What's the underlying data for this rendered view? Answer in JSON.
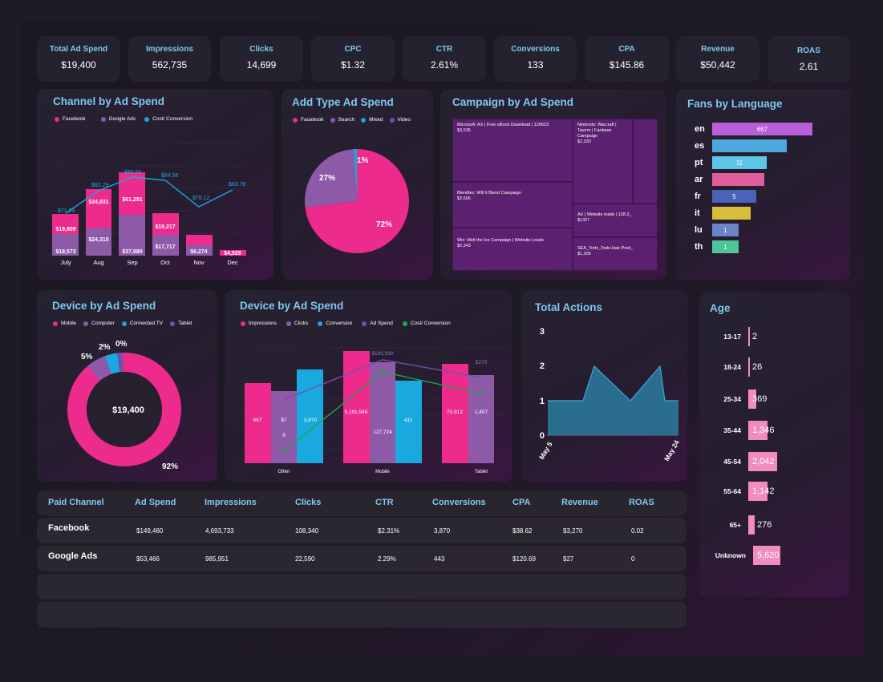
{
  "kpis": [
    {
      "label": "Total Ad Spend",
      "value": "$19,400"
    },
    {
      "label": "Impressions",
      "value": "562,735"
    },
    {
      "label": "Clicks",
      "value": "14,699"
    },
    {
      "label": "CPC",
      "value": "$1.32"
    },
    {
      "label": "CTR",
      "value": "2.61%"
    },
    {
      "label": "Conversions",
      "value": "133"
    },
    {
      "label": "CPA",
      "value": "$145.86"
    },
    {
      "label": "Revenue",
      "value": "$50,442"
    },
    {
      "label": "ROAS",
      "value": "2.61"
    }
  ],
  "channel": {
    "title": "Channel by Ad Spend",
    "legend": [
      "Facebook",
      "Google Ads",
      "Cost/ Conversion"
    ],
    "months": [
      "July",
      "Aug",
      "Sep",
      "Oct",
      "Nov",
      "Dec"
    ],
    "fb_labels": [
      "$19,809",
      "$34,931",
      "$61,291",
      "$19,217",
      "",
      "$4,529"
    ],
    "ga_labels": [
      "$18,573",
      "$24,310",
      "$37,880",
      "$17,717",
      "$6,274",
      ""
    ],
    "line_labels": [
      "$71.89",
      "$82.29",
      "$85.55",
      "$84.56",
      "$76.12",
      "$83.78"
    ]
  },
  "adtype": {
    "title": "Add Type Ad Spend",
    "legend": [
      "Facebook",
      "Search",
      "Mixed",
      "Video"
    ],
    "labels": [
      "72%",
      "27%",
      "1%"
    ]
  },
  "campaign": {
    "title": "Campaign by Ad Spend",
    "cells": [
      {
        "name": "Microsoft: AX | Free eBook Download | 120623",
        "value": "$3,535"
      },
      {
        "name": "Nintendo: Warcraft | Tavern | Fanbase Campaign",
        "value": "$2,333"
      },
      {
        "name": "Blendtec: Will it Blend Campaign",
        "value": "$2,606"
      },
      {
        "name": "AX | Website leads | 128.2_",
        "value": "$1327"
      },
      {
        "name": "Wix: Melt the Ice Campaign | Website Leads",
        "value": "$2,343"
      },
      {
        "name": "SEA_Tortx_Todo-Hair-Prod_",
        "value": "$1,305"
      }
    ]
  },
  "fans": {
    "title": "Fans by Language",
    "rows": [
      {
        "code": "en",
        "value": "667",
        "color": "#b95fd8"
      },
      {
        "code": "es",
        "value": "",
        "color": "#4da9dd"
      },
      {
        "code": "pt",
        "value": "11",
        "color": "#5cc6e6"
      },
      {
        "code": "ar",
        "value": "",
        "color": "#e05d9b"
      },
      {
        "code": "fr",
        "value": "5",
        "color": "#4a62b9"
      },
      {
        "code": "it",
        "value": "",
        "color": "#d7be3b"
      },
      {
        "code": "lu",
        "value": "1",
        "color": "#6a84c5"
      },
      {
        "code": "th",
        "value": "1",
        "color": "#4fc49b"
      }
    ]
  },
  "device_donut": {
    "title": "Device by Ad Spend",
    "legend": [
      "Mobile",
      "Computer",
      "Connected TV",
      "Tablet"
    ],
    "center": "$19,400",
    "labels": [
      "92%",
      "5%",
      "2%",
      "0%"
    ]
  },
  "device_bars": {
    "title": "Device by Ad Spend",
    "legend": [
      "Impressions",
      "Clicks",
      "Conversion",
      "Ad Spend",
      "Cost/ Conversion"
    ],
    "groups": [
      "Other",
      "Mobile",
      "Tablet"
    ],
    "labels": {
      "other": [
        "667",
        "$7",
        "3,870",
        "8"
      ],
      "mobile": [
        "5,191,945",
        "127,724",
        "411",
        "$189,930"
      ],
      "tablet": [
        "70,912",
        "1,407",
        "$270"
      ]
    }
  },
  "total_actions": {
    "title": "Total Actions",
    "yticks": [
      "3",
      "2",
      "1",
      "0"
    ],
    "xticks": [
      "May 5",
      "May 24"
    ]
  },
  "age": {
    "title": "Age",
    "rows": [
      {
        "label": "13-17",
        "value": "2"
      },
      {
        "label": "18-24",
        "value": "26"
      },
      {
        "label": "25-34",
        "value": "369"
      },
      {
        "label": "35-44",
        "value": "1,346"
      },
      {
        "label": "45-54",
        "value": "2,042"
      },
      {
        "label": "55-64",
        "value": "1,142"
      },
      {
        "label": "65+",
        "value": "276"
      },
      {
        "label": "Unknown",
        "value": "5,620"
      }
    ]
  },
  "table": {
    "headers": [
      "Paid Channel",
      "Ad Spend",
      "Impressions",
      "Clicks",
      "CTR",
      "Conversions",
      "CPA",
      "Revenue",
      "ROAS"
    ],
    "rows": [
      [
        "Facebook",
        "$149,460",
        "4,693,733",
        "108,340",
        "$2.31%",
        "3,870",
        "$38.62",
        "$3,270",
        "0.02"
      ],
      [
        "Google Ads",
        "$53,466",
        "985,951",
        "22,590",
        "2.29%",
        "443",
        "$120.69",
        "$27",
        "0"
      ]
    ]
  },
  "colors": {
    "accent": "#7fc8ef",
    "pink": "#ec2b8c",
    "purple": "#8d5aa8",
    "cyan": "#19a9de",
    "violet": "#7152a8",
    "green": "#1fa64a",
    "teal": "#2a6d8f"
  }
}
